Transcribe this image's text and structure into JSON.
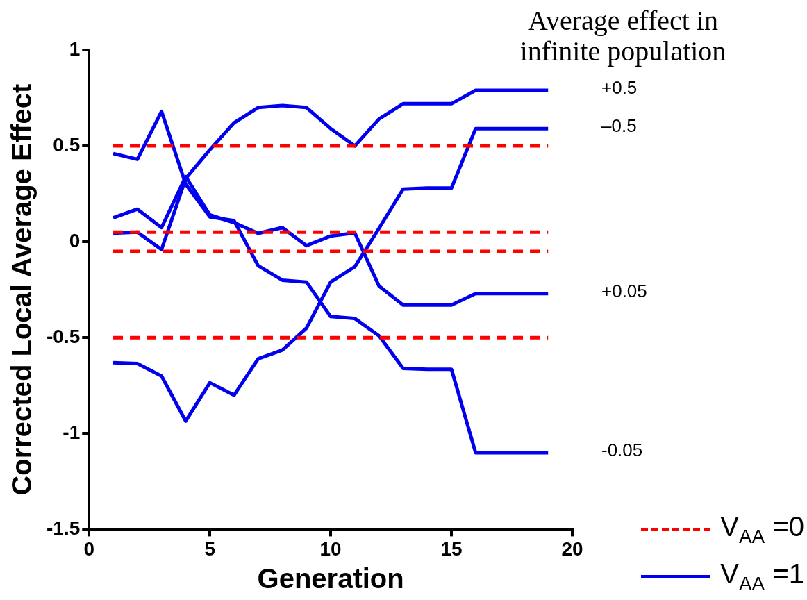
{
  "chart_data": {
    "type": "line",
    "xlabel": "Generation",
    "ylabel": "Corrected Local Average Effect",
    "x": [
      1,
      2,
      3,
      4,
      5,
      6,
      7,
      8,
      9,
      10,
      11,
      12,
      13,
      14,
      15,
      16,
      17,
      18,
      19
    ],
    "xlim": [
      0,
      20
    ],
    "xticks": [
      0,
      5,
      10,
      15,
      20
    ],
    "ylim": [
      -1.5,
      1
    ],
    "yticks": [
      1,
      0.5,
      0,
      -0.5,
      -1,
      -1.5
    ],
    "grid": false,
    "legend": "bottom right",
    "marker": "none",
    "series": [
      {
        "name": "V$_{AA}$ =0",
        "color": "#ff0000",
        "line_style": "dashed",
        "values": [
          0.5,
          0.5,
          0.5,
          0.5,
          0.5,
          0.5,
          0.5,
          0.5,
          0.5,
          0.5,
          0.5,
          0.5,
          0.5,
          0.5,
          0.5,
          0.5,
          0.5,
          0.5,
          0.5
        ]
      },
      {
        "color": "#ff0000",
        "line_style": "dashed",
        "values": [
          0.05,
          0.05,
          0.05,
          0.05,
          0.05,
          0.05,
          0.05,
          0.05,
          0.05,
          0.05,
          0.05,
          0.05,
          0.05,
          0.05,
          0.05,
          0.05,
          0.05,
          0.05,
          0.05
        ]
      },
      {
        "color": "#ff0000",
        "line_style": "dashed",
        "values": [
          -0.05,
          -0.05,
          -0.05,
          -0.05,
          -0.05,
          -0.05,
          -0.05,
          -0.05,
          -0.05,
          -0.05,
          -0.05,
          -0.05,
          -0.05,
          -0.05,
          -0.05,
          -0.05,
          -0.05,
          -0.05,
          -0.05
        ]
      },
      {
        "color": "#ff0000",
        "line_style": "dashed",
        "values": [
          -0.5,
          -0.5,
          -0.5,
          -0.5,
          -0.5,
          -0.5,
          -0.5,
          -0.5,
          -0.5,
          -0.5,
          -0.5,
          -0.5,
          -0.5,
          -0.5,
          -0.5,
          -0.5,
          -0.5,
          -0.5,
          -0.5
        ]
      },
      {
        "name": "V$_{AA}$ =1",
        "color": "#0000ee",
        "line_style": "solid",
        "values": [
          0.045,
          0.05,
          -0.04,
          0.33,
          0.48,
          0.62,
          0.7,
          0.71,
          0.7,
          0.59,
          0.5,
          0.64,
          0.72,
          0.72,
          0.72,
          0.79,
          0.79,
          0.79,
          0.79
        ]
      },
      {
        "color": "#0000ee",
        "line_style": "solid",
        "values": [
          -0.63,
          -0.635,
          -0.7,
          -0.935,
          -0.735,
          -0.8,
          -0.61,
          -0.565,
          -0.45,
          -0.21,
          -0.13,
          0.07,
          0.275,
          0.28,
          0.28,
          0.59,
          0.59,
          0.59,
          0.59
        ]
      },
      {
        "color": "#0000ee",
        "line_style": "solid",
        "values": [
          0.125,
          0.17,
          0.074,
          0.34,
          0.14,
          0.1,
          0.044,
          0.074,
          -0.02,
          0.03,
          0.046,
          -0.23,
          -0.33,
          -0.33,
          -0.33,
          -0.27,
          -0.27,
          -0.27,
          -0.27
        ]
      },
      {
        "color": "#0000ee",
        "line_style": "solid",
        "values": [
          0.46,
          0.43,
          0.68,
          0.3,
          0.13,
          0.11,
          -0.125,
          -0.2,
          -0.21,
          -0.39,
          -0.4,
          -0.49,
          -0.66,
          -0.665,
          -0.665,
          -1.1,
          -1.1,
          -1.1,
          -1.1
        ]
      }
    ],
    "annotations": [
      "Average effect in infinite population",
      "+0.5",
      "–0.5",
      "+0.05",
      "-0.05"
    ]
  }
}
